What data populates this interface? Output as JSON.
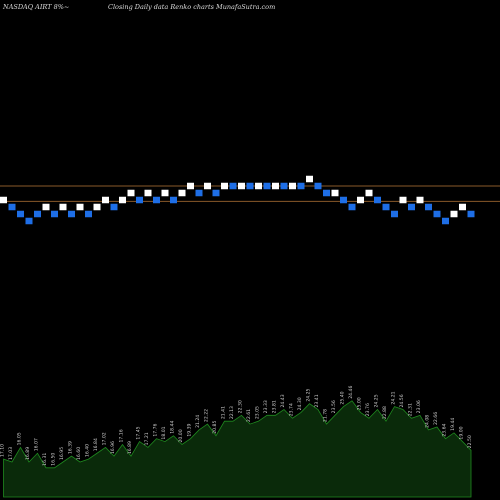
{
  "header": {
    "left": "NASDAQ AIRT 8%~",
    "right": "Closing Daily data  Renko  charts MunafaSutra.com"
  },
  "colors": {
    "background": "#000000",
    "up_brick": "#ffffff",
    "down_brick": "#1e6ee6",
    "reference_line": "#8a5a2a",
    "volume_fill": "#0a2a0a",
    "volume_stroke": "#1f8a1f"
  },
  "chart_data": {
    "type": "renko",
    "title": "",
    "xlabel": "",
    "ylabel": "",
    "reference_lines": [
      1.5,
      0.4
    ],
    "bricks": [
      {
        "y": 0.5,
        "dir": "up"
      },
      {
        "y": 0.0,
        "dir": "down"
      },
      {
        "y": -0.5,
        "dir": "down"
      },
      {
        "y": -1.0,
        "dir": "down"
      },
      {
        "y": -0.5,
        "dir": "down"
      },
      {
        "y": 0.0,
        "dir": "up"
      },
      {
        "y": -0.5,
        "dir": "down"
      },
      {
        "y": 0.0,
        "dir": "up"
      },
      {
        "y": -0.5,
        "dir": "down"
      },
      {
        "y": 0.0,
        "dir": "up"
      },
      {
        "y": -0.5,
        "dir": "down"
      },
      {
        "y": 0.0,
        "dir": "up"
      },
      {
        "y": 0.5,
        "dir": "up"
      },
      {
        "y": 0.0,
        "dir": "down"
      },
      {
        "y": 0.5,
        "dir": "up"
      },
      {
        "y": 1.0,
        "dir": "up"
      },
      {
        "y": 0.5,
        "dir": "down"
      },
      {
        "y": 1.0,
        "dir": "up"
      },
      {
        "y": 0.5,
        "dir": "down"
      },
      {
        "y": 1.0,
        "dir": "up"
      },
      {
        "y": 0.5,
        "dir": "down"
      },
      {
        "y": 1.0,
        "dir": "up"
      },
      {
        "y": 1.5,
        "dir": "up"
      },
      {
        "y": 1.0,
        "dir": "down"
      },
      {
        "y": 1.5,
        "dir": "up"
      },
      {
        "y": 1.0,
        "dir": "down"
      },
      {
        "y": 1.5,
        "dir": "up"
      },
      {
        "y": 1.5,
        "dir": "down"
      },
      {
        "y": 1.5,
        "dir": "up"
      },
      {
        "y": 1.5,
        "dir": "down"
      },
      {
        "y": 1.5,
        "dir": "up"
      },
      {
        "y": 1.5,
        "dir": "down"
      },
      {
        "y": 1.5,
        "dir": "up"
      },
      {
        "y": 1.5,
        "dir": "down"
      },
      {
        "y": 1.5,
        "dir": "up"
      },
      {
        "y": 1.5,
        "dir": "down"
      },
      {
        "y": 2.0,
        "dir": "up"
      },
      {
        "y": 1.5,
        "dir": "down"
      },
      {
        "y": 1.0,
        "dir": "down"
      },
      {
        "y": 1.0,
        "dir": "up"
      },
      {
        "y": 0.5,
        "dir": "down"
      },
      {
        "y": 0.0,
        "dir": "down"
      },
      {
        "y": 0.5,
        "dir": "up"
      },
      {
        "y": 1.0,
        "dir": "up"
      },
      {
        "y": 0.5,
        "dir": "down"
      },
      {
        "y": 0.0,
        "dir": "down"
      },
      {
        "y": -0.5,
        "dir": "down"
      },
      {
        "y": 0.5,
        "dir": "up"
      },
      {
        "y": 0.0,
        "dir": "down"
      },
      {
        "y": 0.5,
        "dir": "up"
      },
      {
        "y": 0.0,
        "dir": "down"
      },
      {
        "y": -0.5,
        "dir": "down"
      },
      {
        "y": -1.0,
        "dir": "down"
      },
      {
        "y": -0.5,
        "dir": "up"
      },
      {
        "y": 0.0,
        "dir": "up"
      },
      {
        "y": -0.5,
        "dir": "down"
      }
    ],
    "volume": {
      "values": [
        13,
        12,
        17,
        12,
        15,
        10,
        10,
        12,
        14,
        12,
        13,
        15,
        17,
        14,
        18,
        14,
        19,
        17,
        20,
        19,
        21,
        18,
        20,
        23,
        25,
        21,
        26,
        26,
        28,
        25,
        26,
        28,
        28,
        30,
        27,
        29,
        32,
        30,
        25,
        28,
        31,
        33,
        29,
        27,
        30,
        26,
        31,
        30,
        27,
        28,
        23,
        24,
        20,
        22,
        19,
        16
      ],
      "labels": [
        "17.10",
        "17.03",
        "16.05",
        "16.89",
        "16.07",
        "16.31",
        "16.50",
        "16.95",
        "16.39",
        "16.60",
        "16.40",
        "16.84",
        "17.02",
        "16.96",
        "17.16",
        "16.89",
        "17.45",
        "17.21",
        "17.76",
        "18.01",
        "18.44",
        "20.00",
        "19.39",
        "21.24",
        "22.22",
        "20.85",
        "21.41",
        "22.13",
        "22.30",
        "22.61",
        "23.05",
        "23.33",
        "23.81",
        "24.43",
        "23.74",
        "24.30",
        "24.25",
        "23.41",
        "21.78",
        "23.56",
        "25.40",
        "24.46",
        "25.00",
        "23.76",
        "24.25",
        "22.88",
        "24.21",
        "24.56",
        "22.31",
        "23.06",
        "24.08",
        "22.66",
        "23.64",
        "19.44",
        "19.00",
        "22.50"
      ],
      "max": 36
    }
  }
}
